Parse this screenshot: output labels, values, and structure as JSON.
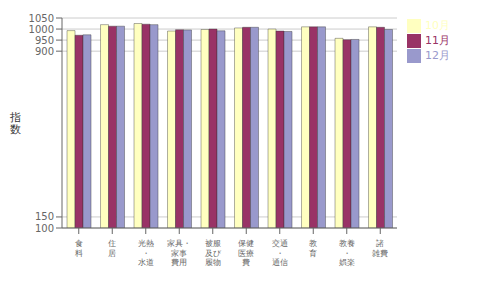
{
  "chart_data": {
    "type": "bar",
    "ylabel": "指\n数",
    "categories": [
      "食\n料",
      "住\n居",
      "光熱\n・\n水道",
      "家具・\n家事\n費用",
      "被服\n及び\n履物",
      "保健\n医療\n費",
      "交通\n・\n通信",
      "教\n育",
      "教養\n・\n娯楽",
      "諸\n雑費"
    ],
    "series": [
      {
        "name": "10月",
        "color": "#FFFFC0",
        "values": [
          993,
          1020,
          1025,
          991,
          998,
          1005,
          1000,
          1010,
          958,
          1010
        ]
      },
      {
        "name": "11月",
        "color": "#993366",
        "values": [
          972,
          1013,
          1022,
          997,
          1000,
          1008,
          991,
          1010,
          952,
          1008
        ]
      },
      {
        "name": "12月",
        "color": "#9999CC",
        "values": [
          974,
          1013,
          1020,
          996,
          992,
          1008,
          989,
          1010,
          953,
          998
        ]
      }
    ],
    "ylim": [
      100,
      1050
    ],
    "yticks": [
      100,
      150,
      900,
      950,
      1000,
      1050
    ],
    "grid": true,
    "legend": "right"
  }
}
